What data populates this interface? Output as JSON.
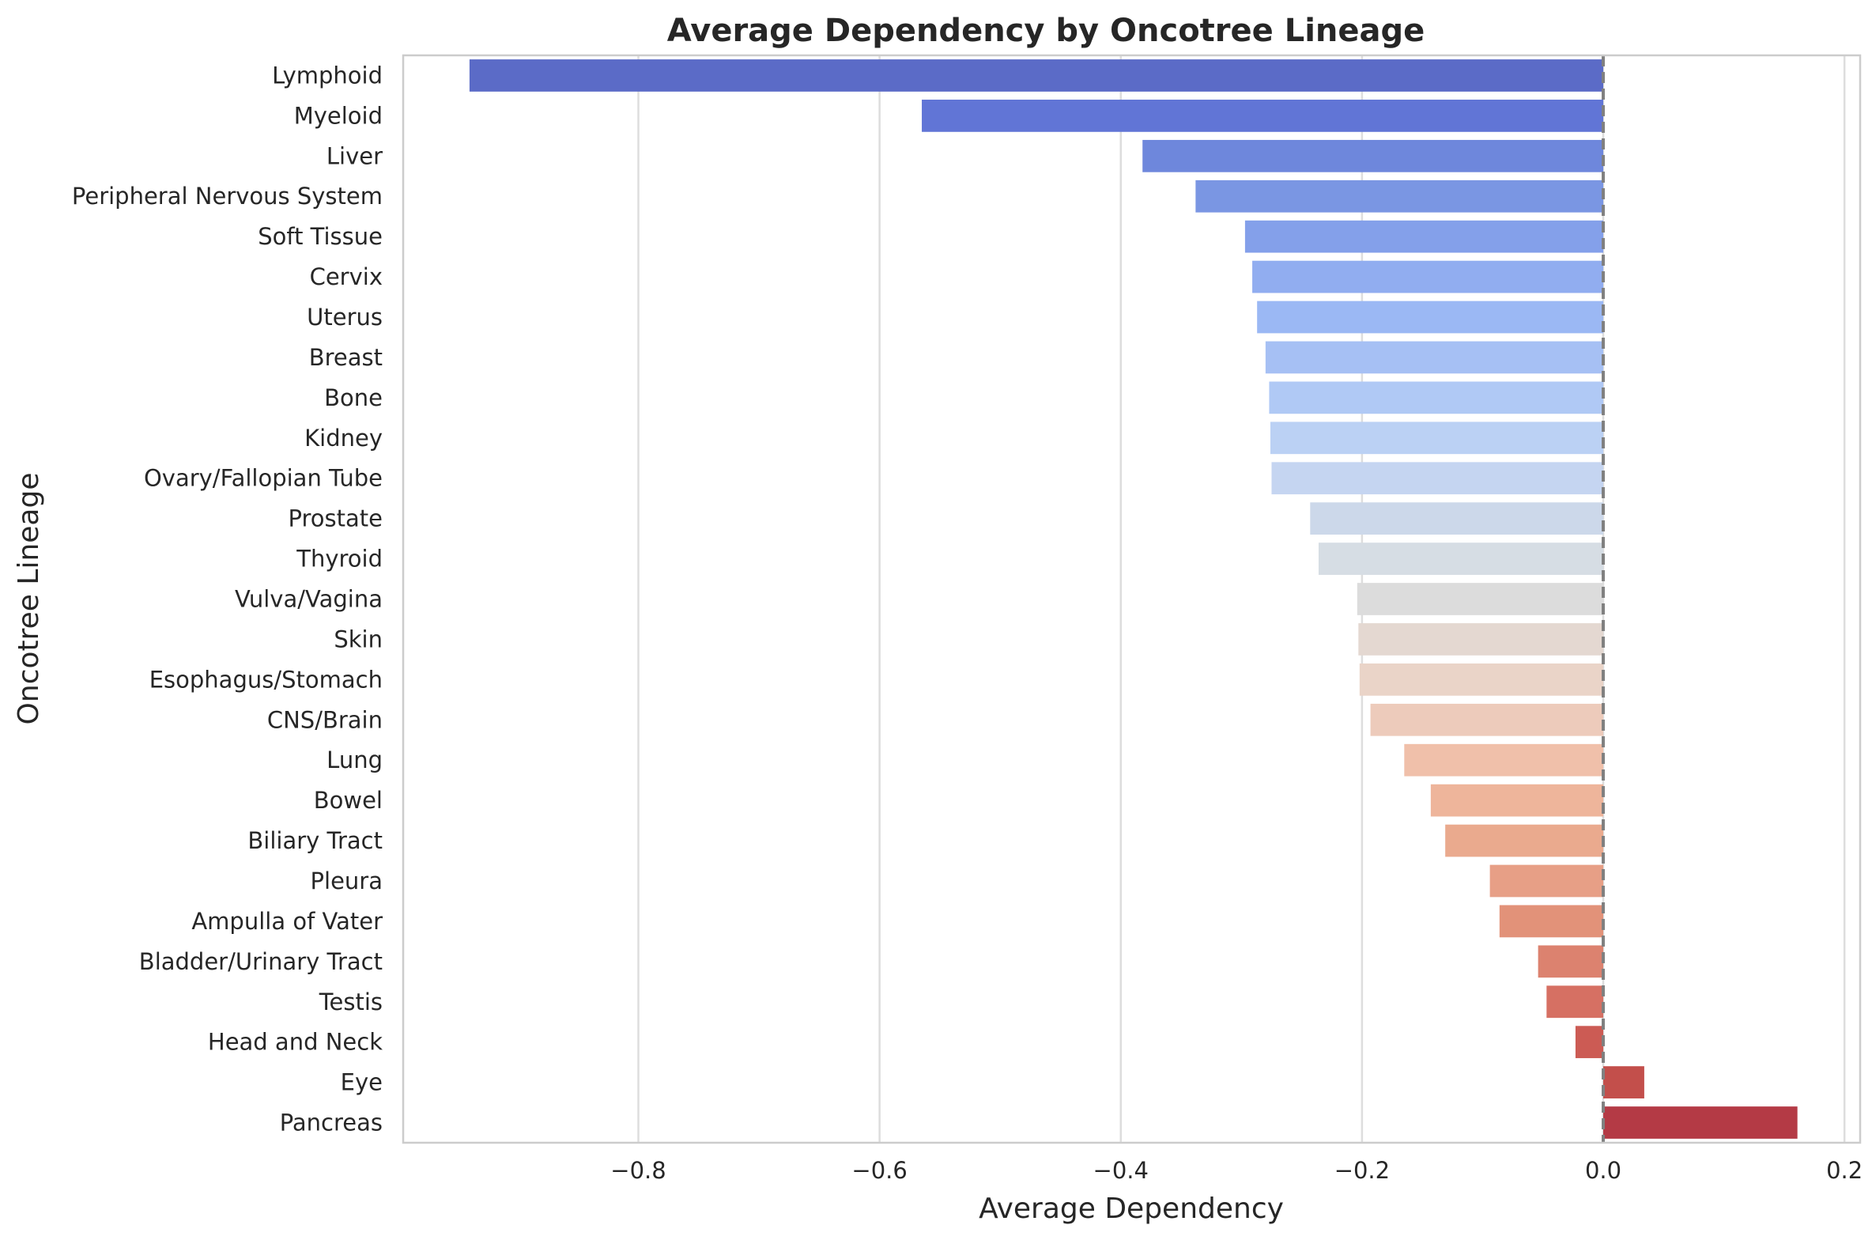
{
  "chart_data": {
    "type": "bar",
    "orientation": "horizontal",
    "title": "Average Dependency by Oncotree Lineage",
    "xlabel": "Average Dependency",
    "ylabel": "Oncotree Lineage",
    "xlim": [
      -0.995,
      0.213
    ],
    "xticks": [
      -0.8,
      -0.6,
      -0.4,
      -0.2,
      0.0,
      0.2
    ],
    "xtick_labels": [
      "−0.8",
      "−0.6",
      "−0.4",
      "−0.2",
      "0.0",
      "0.2"
    ],
    "grid": "vertical",
    "reference_line": {
      "x": 0.0,
      "style": "dashed",
      "color": "#808080"
    },
    "palette": "coolwarm",
    "categories": [
      "Lymphoid",
      "Myeloid",
      "Liver",
      "Peripheral Nervous System",
      "Soft Tissue",
      "Cervix",
      "Uterus",
      "Breast",
      "Bone",
      "Kidney",
      "Ovary/Fallopian Tube",
      "Prostate",
      "Thyroid",
      "Vulva/Vagina",
      "Skin",
      "Esophagus/Stomach",
      "CNS/Brain",
      "Lung",
      "Bowel",
      "Biliary Tract",
      "Pleura",
      "Ampulla of Vater",
      "Bladder/Urinary Tract",
      "Testis",
      "Head and Neck",
      "Eye",
      "Pancreas"
    ],
    "values": [
      -0.94,
      -0.565,
      -0.382,
      -0.338,
      -0.297,
      -0.291,
      -0.287,
      -0.28,
      -0.277,
      -0.276,
      -0.275,
      -0.243,
      -0.236,
      -0.204,
      -0.203,
      -0.202,
      -0.193,
      -0.165,
      -0.143,
      -0.131,
      -0.094,
      -0.086,
      -0.054,
      -0.047,
      -0.023,
      0.034,
      0.161
    ],
    "colors": [
      "#5b6bc7",
      "#6175d6",
      "#6e87dc",
      "#7a96e3",
      "#84a0ea",
      "#91adf0",
      "#9bb8f4",
      "#a6c0f4",
      "#b0c9f5",
      "#bbd1f4",
      "#c5d5f1",
      "#ccd8ea",
      "#d6dde4",
      "#dcdcdc",
      "#e4d8d1",
      "#ead4c8",
      "#edcbbb",
      "#f0c0aa",
      "#eeb59b",
      "#eaaa8e",
      "#e79f86",
      "#e29279",
      "#dc826f",
      "#d67063",
      "#cc5b54",
      "#c34f4b",
      "#b43a45"
    ]
  }
}
